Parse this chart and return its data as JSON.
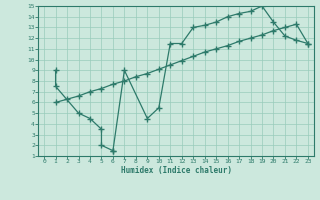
{
  "bg_color": "#cce8dd",
  "grid_color": "#99ccbb",
  "line_color": "#2d7a6a",
  "xlabel": "Humidex (Indice chaleur)",
  "xlim": [
    -0.5,
    23.5
  ],
  "ylim": [
    1,
    15
  ],
  "xticks": [
    0,
    1,
    2,
    3,
    4,
    5,
    6,
    7,
    8,
    9,
    10,
    11,
    12,
    13,
    14,
    15,
    16,
    17,
    18,
    19,
    20,
    21,
    22,
    23
  ],
  "yticks": [
    1,
    2,
    3,
    4,
    5,
    6,
    7,
    8,
    9,
    10,
    11,
    12,
    13,
    14,
    15
  ],
  "line1_x": [
    1,
    1,
    3,
    4,
    5,
    5,
    6,
    6,
    7,
    9,
    10,
    11,
    12,
    13,
    14,
    15,
    16,
    17,
    18,
    19,
    20,
    21,
    22,
    23
  ],
  "line1_y": [
    9.0,
    7.5,
    5.0,
    4.5,
    3.5,
    2.0,
    1.5,
    1.5,
    9.0,
    4.5,
    5.5,
    11.5,
    11.5,
    13.0,
    13.2,
    13.5,
    14.0,
    14.3,
    14.5,
    15.0,
    13.5,
    12.2,
    11.8,
    11.5
  ],
  "line2_x": [
    1,
    2,
    3,
    4,
    5,
    6,
    7,
    8,
    9,
    10,
    11,
    12,
    13,
    14,
    15,
    16,
    17,
    18,
    19,
    20,
    21,
    22,
    23
  ],
  "line2_y": [
    6.0,
    6.3,
    6.6,
    7.0,
    7.3,
    7.7,
    8.0,
    8.4,
    8.7,
    9.1,
    9.5,
    9.9,
    10.3,
    10.7,
    11.0,
    11.3,
    11.7,
    12.0,
    12.3,
    12.7,
    13.0,
    13.3,
    11.5
  ]
}
